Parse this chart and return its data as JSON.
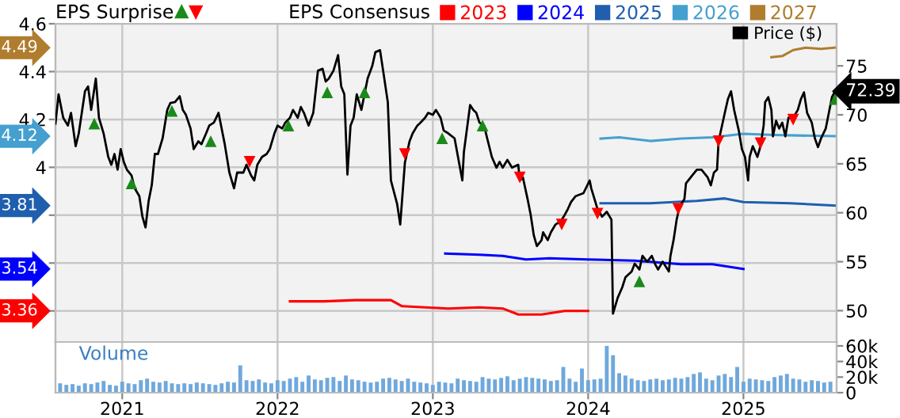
{
  "chart_data": [
    {
      "type": "line",
      "legend_title": "EPS Consensus",
      "legend": "top",
      "tick_labels": "y",
      "grid": true,
      "annotations": [
        "EPS Surprise",
        "3.36",
        "3.54",
        "3.81",
        "4.12",
        "4.49",
        "72.39"
      ],
      "xlim": [
        2020.57,
        2025.6
      ],
      "xticks": [
        2021,
        2022,
        2023,
        2024,
        2025
      ],
      "ylim": [
        3.27,
        4.6
      ],
      "yticks": [
        {
          "value": 3.4,
          "label": null
        },
        {
          "value": 3.6,
          "label": null
        },
        {
          "value": 3.8,
          "label": null
        },
        4,
        4.2,
        4.4,
        4.6
      ],
      "y2lim": [
        46.8,
        79.3
      ],
      "y2ticks": [
        50,
        55,
        60,
        65,
        70,
        75
      ],
      "series": [
        {
          "name": "2023",
          "color": "#ff0000",
          "x": [
            2022.08,
            2022.3,
            2022.5,
            2022.73,
            2022.8,
            2022.95,
            2023.1,
            2023.3,
            2023.45,
            2023.55,
            2023.7,
            2023.85,
            2024.0
          ],
          "values": [
            3.44,
            3.44,
            3.445,
            3.445,
            3.42,
            3.415,
            3.41,
            3.415,
            3.41,
            3.385,
            3.385,
            3.4,
            3.4
          ]
        },
        {
          "name": "2024",
          "color": "#0000ff",
          "x": [
            2023.08,
            2023.3,
            2023.45,
            2023.6,
            2023.75,
            2024.0,
            2024.3,
            2024.6,
            2024.8,
            2025.0
          ],
          "values": [
            3.64,
            3.635,
            3.63,
            3.615,
            3.62,
            3.615,
            3.61,
            3.595,
            3.595,
            3.575
          ]
        },
        {
          "name": "2025",
          "color": "#1f5fae",
          "x": [
            2024.08,
            2024.4,
            2024.7,
            2024.88,
            2025.0,
            2025.3,
            2025.59
          ],
          "values": [
            3.85,
            3.85,
            3.86,
            3.87,
            3.855,
            3.85,
            3.84
          ]
        },
        {
          "name": "2026",
          "color": "#45a0d0",
          "x": [
            2024.08,
            2024.2,
            2024.4,
            2024.6,
            2024.8,
            2025.0,
            2025.2,
            2025.59
          ],
          "values": [
            4.12,
            4.125,
            4.11,
            4.12,
            4.125,
            4.14,
            4.135,
            4.13
          ]
        },
        {
          "name": "2027",
          "color": "#b07d2e",
          "x": [
            2025.18,
            2025.25,
            2025.32,
            2025.4,
            2025.5,
            2025.59
          ],
          "values": [
            4.46,
            4.465,
            4.49,
            4.5,
            4.495,
            4.5
          ]
        },
        {
          "name": "Price ($)",
          "color": "#000000",
          "axis": "y2",
          "x": [
            2020.57,
            2020.59,
            2020.62,
            2020.65,
            2020.67,
            2020.7,
            2020.72,
            2020.76,
            2020.78,
            2020.8,
            2020.83,
            2020.85,
            2020.88,
            2020.91,
            2020.93,
            2020.95,
            2020.97,
            2020.99,
            2021.01,
            2021.03,
            2021.06,
            2021.08,
            2021.11,
            2021.13,
            2021.15,
            2021.17,
            2021.19,
            2021.21,
            2021.23,
            2021.26,
            2021.29,
            2021.31,
            2021.34,
            2021.37,
            2021.39,
            2021.41,
            2021.44,
            2021.46,
            2021.49,
            2021.51,
            2021.54,
            2021.56,
            2021.59,
            2021.62,
            2021.64,
            2021.66,
            2021.69,
            2021.72,
            2021.74,
            2021.78,
            2021.8,
            2021.83,
            2021.85,
            2021.87,
            2021.9,
            2021.93,
            2021.95,
            2021.98,
            2022.0,
            2022.03,
            2022.05,
            2022.08,
            2022.1,
            2022.13,
            2022.15,
            2022.17,
            2022.2,
            2022.23,
            2022.26,
            2022.29,
            2022.31,
            2022.33,
            2022.36,
            2022.39,
            2022.41,
            2022.43,
            2022.45,
            2022.47,
            2022.49,
            2022.51,
            2022.54,
            2022.56,
            2022.58,
            2022.61,
            2022.63,
            2022.66,
            2022.68,
            2022.71,
            2022.73,
            2022.77,
            2022.79,
            2022.82,
            2022.85,
            2022.87,
            2022.9,
            2022.92,
            2022.95,
            2022.97,
            2023.0,
            2023.02,
            2023.05,
            2023.07,
            2023.1,
            2023.14,
            2023.19,
            2023.2,
            2023.24,
            2023.26,
            2023.28,
            2023.3,
            2023.33,
            2023.35,
            2023.38,
            2023.41,
            2023.43,
            2023.45,
            2023.48,
            2023.51,
            2023.55,
            2023.56,
            2023.58,
            2023.61,
            2023.63,
            2023.65,
            2023.67,
            2023.7,
            2023.71,
            2023.74,
            2023.76,
            2023.79,
            2023.81,
            2023.83,
            2023.85,
            2023.87,
            2023.89,
            2023.92,
            2023.97,
            2024.01,
            2024.02,
            2024.06,
            2024.09,
            2024.12,
            2024.15,
            2024.16,
            2024.19,
            2024.22,
            2024.24,
            2024.28,
            2024.3,
            2024.33,
            2024.35,
            2024.38,
            2024.41,
            2024.43,
            2024.45,
            2024.48,
            2024.52,
            2024.53,
            2024.55,
            2024.57,
            2024.59,
            2024.62,
            2024.63,
            2024.67,
            2024.7,
            2024.73,
            2024.77,
            2024.79,
            2024.81,
            2024.83,
            2024.84,
            2024.88,
            2024.9,
            2024.92,
            2024.94,
            2024.97,
            2024.99,
            2025.01,
            2025.03,
            2025.04,
            2025.06,
            2025.09,
            2025.11,
            2025.13,
            2025.14,
            2025.16,
            2025.18,
            2025.19,
            2025.21,
            2025.23,
            2025.25,
            2025.27,
            2025.29,
            2025.32,
            2025.35,
            2025.37,
            2025.39,
            2025.41,
            2025.44,
            2025.46,
            2025.48,
            2025.5,
            2025.53,
            2025.55,
            2025.57,
            2025.59
          ],
          "values": [
            69.1,
            72.1,
            69.7,
            68.9,
            70.2,
            66.8,
            68.1,
            72.4,
            72.9,
            70.5,
            73.7,
            69.7,
            68.1,
            65.7,
            64.9,
            66.0,
            64.4,
            66.5,
            65.2,
            64.4,
            63.8,
            62.5,
            61.7,
            59.6,
            58.5,
            61.2,
            62.8,
            66.0,
            66.0,
            67.6,
            70.5,
            71.2,
            71.3,
            71.9,
            70.5,
            70.0,
            68.6,
            66.5,
            67.3,
            67.0,
            68.1,
            68.9,
            69.2,
            70.2,
            68.6,
            67.0,
            64.1,
            62.5,
            64.1,
            64.1,
            64.9,
            63.8,
            63.3,
            64.9,
            65.7,
            66.0,
            66.5,
            68.1,
            68.9,
            68.6,
            69.2,
            69.7,
            70.5,
            69.7,
            70.8,
            70.2,
            68.9,
            70.2,
            74.5,
            74.7,
            73.4,
            73.7,
            74.5,
            76.1,
            72.9,
            72.1,
            63.9,
            68.9,
            69.7,
            72.1,
            70.5,
            72.1,
            73.7,
            75.0,
            76.4,
            76.6,
            74.5,
            71.3,
            63.3,
            60.9,
            58.8,
            65.1,
            67.3,
            68.1,
            68.9,
            69.2,
            69.7,
            70.2,
            70.0,
            70.5,
            69.7,
            68.4,
            68.1,
            67.6,
            63.3,
            66.2,
            71.0,
            70.5,
            70.2,
            69.2,
            68.9,
            67.6,
            65.7,
            64.6,
            65.2,
            64.6,
            65.4,
            64.6,
            64.9,
            63.3,
            63.6,
            61.4,
            59.8,
            57.7,
            56.6,
            57.2,
            58.0,
            57.2,
            58.0,
            58.8,
            59.0,
            59.3,
            59.8,
            60.4,
            61.1,
            61.7,
            62.0,
            63.3,
            62.5,
            60.4,
            59.6,
            60.1,
            59.3,
            49.7,
            51.3,
            52.4,
            53.4,
            54.0,
            54.8,
            54.2,
            55.6,
            55.0,
            55.6,
            54.8,
            54.2,
            55.0,
            54.0,
            55.6,
            57.2,
            59.3,
            60.7,
            61.4,
            63.0,
            63.8,
            64.4,
            64.4,
            63.6,
            62.8,
            64.1,
            64.4,
            67.3,
            70.2,
            71.6,
            72.4,
            70.5,
            68.4,
            66.5,
            65.7,
            63.3,
            65.7,
            66.8,
            65.7,
            66.8,
            68.9,
            71.3,
            71.8,
            70.5,
            67.8,
            69.4,
            68.6,
            69.2,
            67.8,
            69.7,
            69.7,
            70.5,
            71.6,
            72.3,
            70.2,
            69.2,
            67.6,
            66.7,
            67.6,
            68.6,
            70.2,
            71.8,
            72.4
          ]
        },
        {
          "type": "scatter",
          "color": "#1a8a1a",
          "axis": "y2",
          "marker": "triangle",
          "x": [
            2020.82,
            2021.06,
            2021.32,
            2021.57,
            2022.07,
            2022.32,
            2022.56,
            2023.06,
            2023.32,
            2024.33,
            2025.59
          ],
          "values": [
            69.1,
            63.0,
            70.4,
            67.3,
            68.9,
            72.3,
            72.3,
            67.6,
            68.9,
            53.0,
            71.6
          ]
        },
        {
          "type": "scatter",
          "color": "#ff0000",
          "axis": "y2",
          "marker": "triangle-down",
          "x": [
            2021.82,
            2022.82,
            2023.56,
            2023.83,
            2024.06,
            2024.58,
            2024.84,
            2025.11,
            2025.32
          ],
          "values": [
            65.2,
            66.0,
            63.6,
            58.8,
            59.9,
            60.4,
            67.3,
            67.1,
            69.5
          ]
        }
      ]
    },
    {
      "type": "bar",
      "title": "Volume",
      "grid": "x",
      "xlim": [
        2020.57,
        2025.6
      ],
      "xticks": [
        2021,
        2022,
        2023,
        2024,
        2025
      ],
      "y2lim": [
        0,
        65000
      ],
      "y2ticks": [
        0,
        {
          "value": 20000,
          "label": "20k"
        },
        {
          "value": 40000,
          "label": "40k"
        },
        {
          "value": 60000,
          "label": "60k"
        }
      ],
      "x": [
        2020.6,
        2020.64,
        2020.68,
        2020.72,
        2020.76,
        2020.8,
        2020.84,
        2020.88,
        2020.92,
        2020.96,
        2021.0,
        2021.04,
        2021.08,
        2021.12,
        2021.16,
        2021.2,
        2021.24,
        2021.28,
        2021.32,
        2021.36,
        2021.4,
        2021.44,
        2021.48,
        2021.52,
        2021.56,
        2021.6,
        2021.64,
        2021.68,
        2021.72,
        2021.76,
        2021.8,
        2021.84,
        2021.88,
        2021.92,
        2021.96,
        2022.0,
        2022.04,
        2022.08,
        2022.12,
        2022.16,
        2022.2,
        2022.24,
        2022.28,
        2022.32,
        2022.36,
        2022.4,
        2022.44,
        2022.48,
        2022.52,
        2022.56,
        2022.6,
        2022.64,
        2022.68,
        2022.72,
        2022.76,
        2022.8,
        2022.84,
        2022.88,
        2022.92,
        2022.96,
        2023.0,
        2023.04,
        2023.08,
        2023.12,
        2023.16,
        2023.2,
        2023.24,
        2023.28,
        2023.32,
        2023.36,
        2023.4,
        2023.44,
        2023.48,
        2023.52,
        2023.56,
        2023.6,
        2023.64,
        2023.68,
        2023.72,
        2023.76,
        2023.8,
        2023.84,
        2023.88,
        2023.92,
        2023.96,
        2024.0,
        2024.04,
        2024.08,
        2024.12,
        2024.16,
        2024.2,
        2024.24,
        2024.28,
        2024.32,
        2024.36,
        2024.4,
        2024.44,
        2024.48,
        2024.52,
        2024.56,
        2024.6,
        2024.64,
        2024.68,
        2024.72,
        2024.76,
        2024.8,
        2024.84,
        2024.88,
        2024.92,
        2024.96,
        2025.0,
        2025.04,
        2025.08,
        2025.12,
        2025.16,
        2025.2,
        2025.24,
        2025.28,
        2025.32,
        2025.36,
        2025.4,
        2025.44,
        2025.48,
        2025.52,
        2025.56
      ],
      "series": [
        {
          "color": "#6fa8dc",
          "axis": "y2",
          "values": [
            12000,
            10000,
            11000,
            9000,
            12000,
            11000,
            13000,
            15000,
            10000,
            9000,
            14000,
            12000,
            11000,
            16000,
            18000,
            14000,
            13000,
            15000,
            12000,
            11000,
            12000,
            11000,
            13000,
            12000,
            11000,
            10000,
            12000,
            14000,
            13000,
            35000,
            16000,
            15000,
            17000,
            13000,
            12000,
            16000,
            15000,
            18000,
            20000,
            14000,
            22000,
            17000,
            16000,
            19000,
            20000,
            15000,
            22000,
            17000,
            16000,
            14000,
            13000,
            14000,
            18000,
            19000,
            17000,
            15000,
            18000,
            14000,
            13000,
            12000,
            10000,
            14000,
            13000,
            12000,
            18000,
            16000,
            15000,
            14000,
            20000,
            18000,
            17000,
            19000,
            21000,
            16000,
            18000,
            20000,
            19000,
            18000,
            17000,
            15000,
            16000,
            33000,
            18000,
            14000,
            31000,
            16000,
            17000,
            18000,
            60000,
            48000,
            25000,
            22000,
            18000,
            16000,
            15000,
            17000,
            18000,
            16000,
            17000,
            19000,
            18000,
            20000,
            24000,
            26000,
            18000,
            16000,
            22000,
            24000,
            20000,
            33000,
            14000,
            18000,
            17000,
            16000,
            15000,
            20000,
            22000,
            24000,
            18000,
            17000,
            14000,
            16000,
            15000,
            13000,
            14000
          ]
        }
      ]
    }
  ]
}
